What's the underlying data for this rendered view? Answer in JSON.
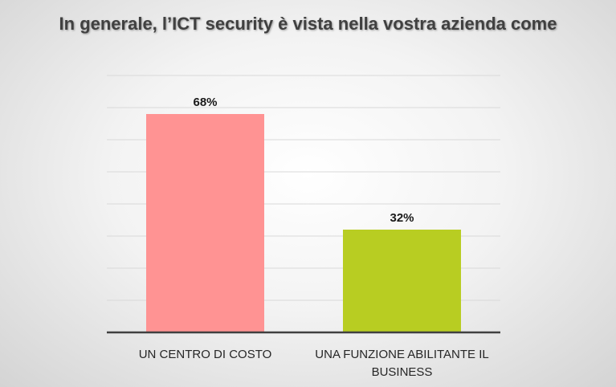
{
  "chart_data": {
    "type": "bar",
    "title": "In generale, l’ICT security è vista nella vostra azienda come",
    "categories": [
      [
        "UN CENTRO DI COSTO"
      ],
      [
        "UNA FUNZIONE ABILITANTE IL",
        "BUSINESS"
      ]
    ],
    "values": [
      68,
      32
    ],
    "data_labels": [
      "68%",
      "32%"
    ],
    "ylim": [
      0,
      80
    ],
    "y_tick_step": 10,
    "show_y_tick_labels": false,
    "grid": true,
    "colors": [
      "#ff9393",
      "#b8cd22"
    ],
    "grid_color": "#d9d9d9",
    "axis_color": "#404040"
  }
}
